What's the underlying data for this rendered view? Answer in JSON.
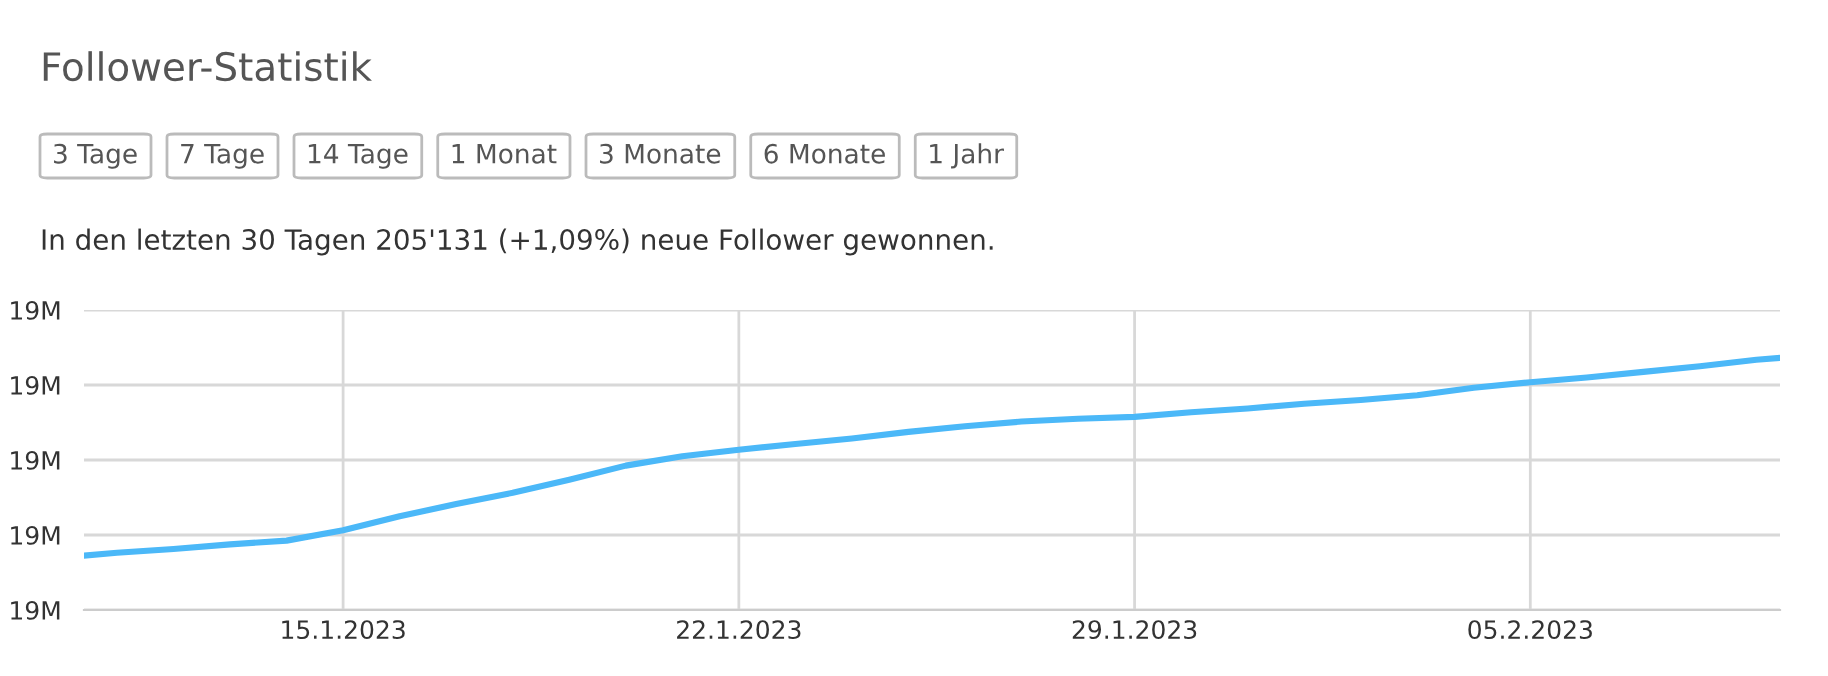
{
  "chart_data": {
    "type": "line",
    "title": "Follower-Statistik",
    "subtitle": "In den letzten 30 Tagen 205'131 (+1,09%) neue Follower gewonnen.",
    "annotations": [
      "3 Tage",
      "7 Tage",
      "14 Tage",
      "1 Monat",
      "3 Monate",
      "6 Monate",
      "1 Jahr"
    ],
    "x": [
      "2023-01-10T10:00",
      "2023-01-11",
      "2023-01-12",
      "2023-01-13",
      "2023-01-14",
      "2023-01-15",
      "2023-01-16",
      "2023-01-17",
      "2023-01-18",
      "2023-01-19",
      "2023-01-20",
      "2023-01-21",
      "2023-01-22",
      "2023-01-23",
      "2023-01-24",
      "2023-01-25",
      "2023-01-26",
      "2023-01-27",
      "2023-01-28",
      "2023-01-29",
      "2023-01-30",
      "2023-01-31",
      "2023-02-01",
      "2023-02-02",
      "2023-02-03",
      "2023-02-04",
      "2023-02-05",
      "2023-02-06",
      "2023-02-07",
      "2023-02-08",
      "2023-02-09",
      "2023-02-09T10:00"
    ],
    "series": [
      {
        "color": "#4bb8f8",
        "values": [
          18.818,
          18.821,
          18.825,
          18.83,
          18.834,
          18.845,
          18.86,
          18.873,
          18.885,
          18.899,
          18.914,
          18.924,
          18.931,
          18.937,
          18.943,
          18.95,
          18.956,
          18.961,
          18.964,
          18.966,
          18.971,
          18.975,
          18.98,
          18.984,
          18.989,
          18.997,
          19.003,
          19.008,
          19.014,
          19.02,
          19.027,
          19.029
        ]
      }
    ],
    "xlim": [
      "2023-01-10T10:00",
      "2023-02-09T10:00"
    ],
    "xticks": [
      {
        "value": "2023-01-15",
        "label": "15.1.2023"
      },
      {
        "value": "2023-01-22",
        "label": "22.1.2023"
      },
      {
        "value": "2023-01-29",
        "label": "29.1.2023"
      },
      {
        "value": "2023-02-05",
        "label": "05.2.2023"
      }
    ],
    "ylim": [
      18.76,
      19.08
    ],
    "yticks": [
      {
        "value": 18.76,
        "label": "19M"
      },
      {
        "value": 18.84,
        "label": "19M"
      },
      {
        "value": 18.92,
        "label": "19M"
      },
      {
        "value": 19.0,
        "label": "19M"
      },
      {
        "value": 19.08,
        "label": "19M"
      }
    ],
    "grid": true,
    "legend": false,
    "marker": "none",
    "line_style": "solid"
  }
}
